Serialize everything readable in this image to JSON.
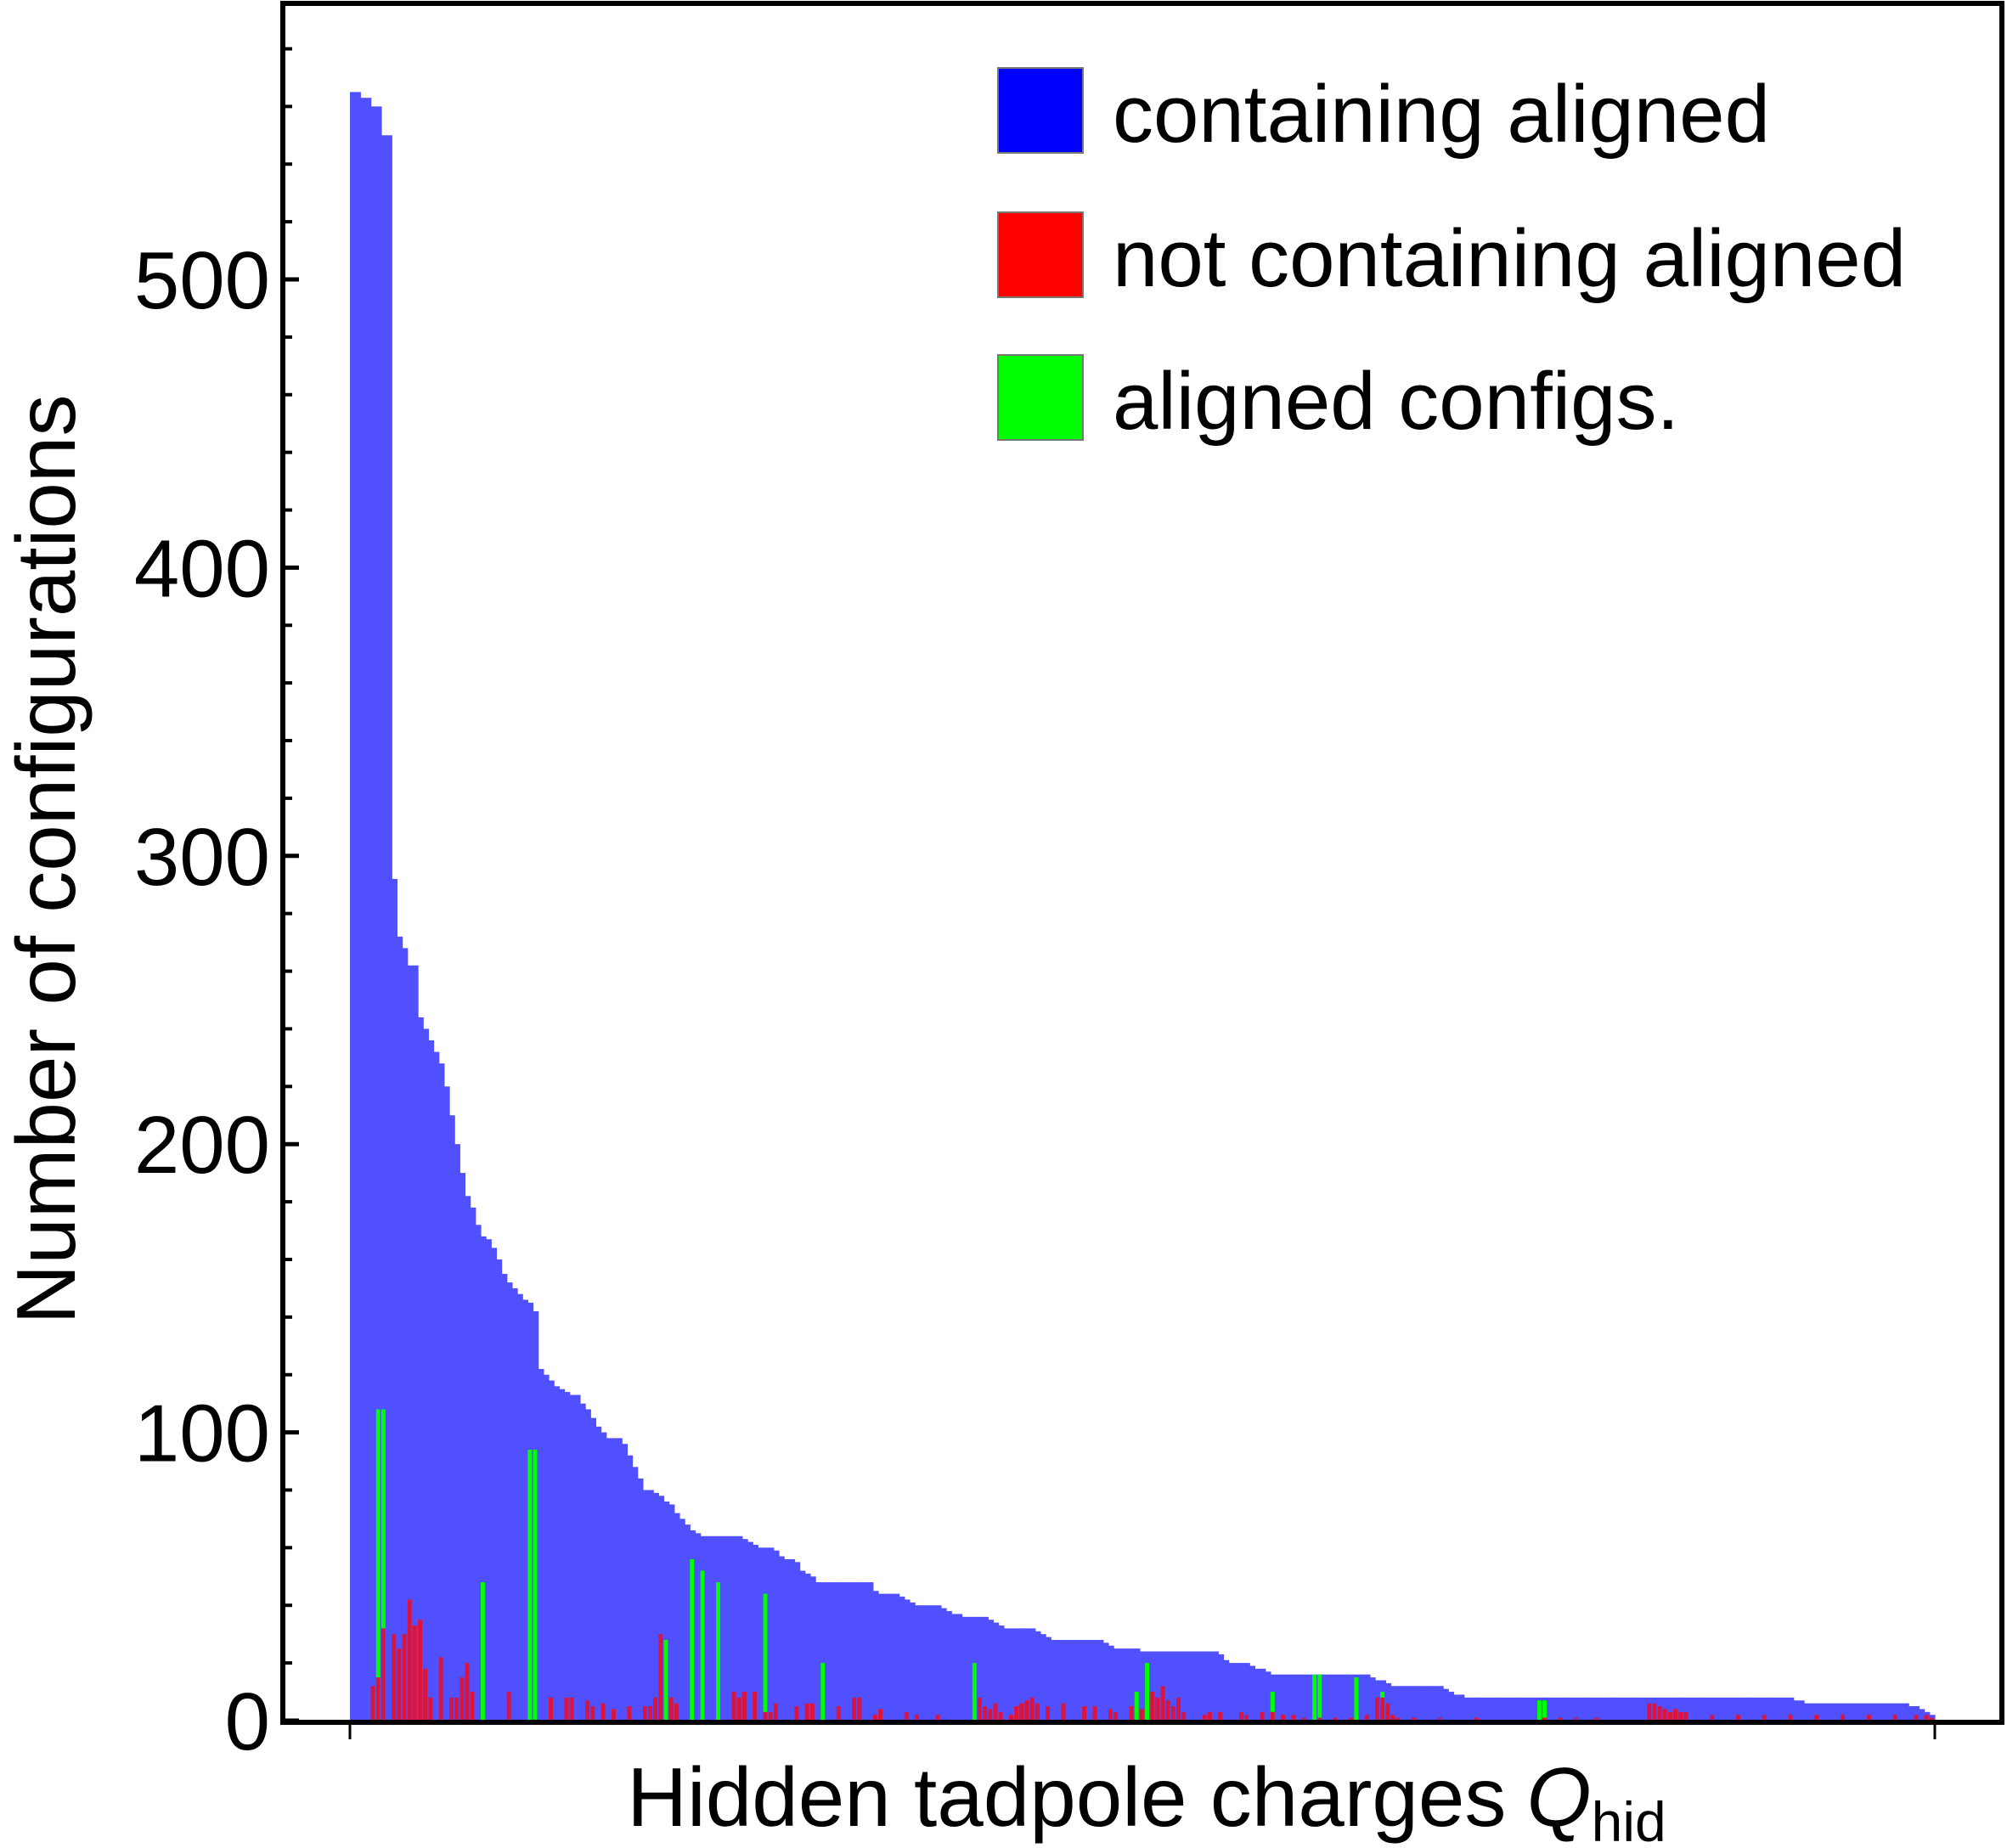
{
  "chart_data": {
    "type": "bar",
    "xlabel": "Hidden tadpole charges",
    "xlabel_symbol": "Q",
    "xlabel_subscript": "hid",
    "ylabel": "Number of configurations",
    "ylim": [
      0,
      590
    ],
    "yticks": [
      "0",
      "100",
      "200",
      "300",
      "400",
      "500"
    ],
    "ytick_values": [
      0,
      100,
      200,
      300,
      400,
      500
    ],
    "grid": false,
    "legend_position": "top-right",
    "colors": {
      "containing": "#5050ff",
      "not_containing": "#dc143c",
      "aligned": "#00ff00",
      "legend_containing": "#0000ff",
      "legend_not_containing": "#ff0000",
      "legend_aligned": "#00ff00"
    },
    "legend": [
      {
        "label": "containing aligned",
        "color": "#0000ff"
      },
      {
        "label": "not containing aligned",
        "color": "#ff0000"
      },
      {
        "label": "aligned configs.",
        "color": "#00ff00"
      }
    ],
    "series": [
      {
        "name": "containing aligned",
        "values": [
          565,
          565,
          563,
          563,
          560,
          560,
          550,
          550,
          292,
          272,
          268,
          262,
          262,
          244,
          240,
          236,
          232,
          228,
          220,
          210,
          200,
          190,
          182,
          178,
          172,
          168,
          167,
          164,
          160,
          155,
          152,
          150,
          148,
          146,
          145,
          142,
          122,
          120,
          118,
          116,
          115,
          114,
          113,
          113,
          110,
          108,
          105,
          102,
          100,
          98,
          98,
          98,
          96,
          92,
          88,
          84,
          80,
          80,
          79,
          78,
          76,
          75,
          72,
          70,
          68,
          66,
          65,
          64,
          64,
          64,
          64,
          64,
          64,
          64,
          64,
          63,
          62,
          61,
          60,
          60,
          60,
          59,
          57,
          56,
          56,
          55,
          52,
          51,
          50,
          48,
          48,
          48,
          48,
          48,
          48,
          48,
          48,
          48,
          48,
          48,
          45,
          44,
          44,
          44,
          44,
          43,
          42,
          41,
          40,
          40,
          40,
          40,
          40,
          39,
          38,
          37,
          37,
          36,
          36,
          36,
          36,
          36,
          35,
          34,
          33,
          32,
          32,
          32,
          32,
          32,
          32,
          31,
          30,
          29,
          28,
          28,
          28,
          28,
          28,
          28,
          28,
          28,
          28,
          28,
          27,
          26,
          25,
          25,
          25,
          25,
          25,
          24,
          24,
          24,
          24,
          24,
          24,
          24,
          24,
          24,
          24,
          24,
          24,
          24,
          24,
          24,
          23,
          21,
          20,
          20,
          20,
          20,
          19,
          18,
          18,
          17,
          16,
          16,
          16,
          16,
          16,
          16,
          16,
          16,
          16,
          16,
          16,
          16,
          16,
          16,
          16,
          16,
          16,
          16,
          16,
          15,
          14,
          14,
          13,
          12,
          12,
          12,
          12,
          12,
          12,
          12,
          12,
          12,
          12,
          11,
          10,
          9,
          9,
          8,
          8,
          8,
          8,
          8,
          8,
          8,
          8,
          8,
          8,
          8,
          8,
          8,
          8,
          8,
          8,
          8,
          8,
          8,
          8,
          8,
          8,
          8,
          8,
          8,
          8,
          8,
          8,
          8,
          8,
          8,
          8,
          8,
          8,
          8,
          8,
          8,
          8,
          8,
          8,
          8,
          8,
          8,
          8,
          8,
          8,
          8,
          8,
          8,
          8,
          8,
          8,
          8,
          8,
          8,
          8,
          8,
          8,
          8,
          8,
          8,
          8,
          8,
          7,
          7,
          6,
          6,
          6,
          6,
          6,
          6,
          6,
          6,
          6,
          6,
          6,
          6,
          6,
          6,
          6,
          6,
          6,
          6,
          6,
          6,
          5,
          5,
          4,
          3,
          2
        ]
      },
      {
        "name": "not containing aligned",
        "sparse": [
          [
            4,
            12
          ],
          [
            5,
            15
          ],
          [
            6,
            32
          ],
          [
            8,
            30
          ],
          [
            9,
            25
          ],
          [
            10,
            30
          ],
          [
            11,
            42
          ],
          [
            12,
            33
          ],
          [
            13,
            35
          ],
          [
            14,
            18
          ],
          [
            15,
            8
          ],
          [
            17,
            22
          ],
          [
            19,
            8
          ],
          [
            20,
            8
          ],
          [
            21,
            15
          ],
          [
            22,
            20
          ],
          [
            23,
            10
          ],
          [
            30,
            10
          ],
          [
            38,
            8
          ],
          [
            41,
            8
          ],
          [
            42,
            8
          ],
          [
            45,
            7
          ],
          [
            46,
            5
          ],
          [
            48,
            6
          ],
          [
            50,
            4
          ],
          [
            53,
            5
          ],
          [
            56,
            5
          ],
          [
            57,
            5
          ],
          [
            58,
            8
          ],
          [
            59,
            30
          ],
          [
            61,
            8
          ],
          [
            62,
            6
          ],
          [
            73,
            10
          ],
          [
            74,
            8
          ],
          [
            75,
            10
          ],
          [
            77,
            10
          ],
          [
            79,
            3
          ],
          [
            80,
            3
          ],
          [
            81,
            6
          ],
          [
            85,
            5
          ],
          [
            87,
            6
          ],
          [
            88,
            6
          ],
          [
            93,
            5
          ],
          [
            96,
            8
          ],
          [
            97,
            8
          ],
          [
            100,
            2
          ],
          [
            101,
            4
          ],
          [
            106,
            3
          ],
          [
            108,
            2
          ],
          [
            112,
            2
          ],
          [
            120,
            8
          ],
          [
            121,
            5
          ],
          [
            122,
            4
          ],
          [
            123,
            6
          ],
          [
            124,
            3
          ],
          [
            126,
            2
          ],
          [
            127,
            5
          ],
          [
            128,
            6
          ],
          [
            129,
            7
          ],
          [
            130,
            8
          ],
          [
            131,
            6
          ],
          [
            133,
            5
          ],
          [
            136,
            6
          ],
          [
            140,
            5
          ],
          [
            142,
            5
          ],
          [
            145,
            4
          ],
          [
            146,
            3
          ],
          [
            149,
            5
          ],
          [
            151,
            4
          ],
          [
            153,
            10
          ],
          [
            154,
            8
          ],
          [
            155,
            12
          ],
          [
            156,
            7
          ],
          [
            157,
            5
          ],
          [
            158,
            8
          ],
          [
            159,
            3
          ],
          [
            163,
            2
          ],
          [
            164,
            3
          ],
          [
            166,
            3
          ],
          [
            170,
            3
          ],
          [
            171,
            2
          ],
          [
            174,
            3
          ],
          [
            176,
            3
          ],
          [
            178,
            2
          ],
          [
            180,
            2
          ],
          [
            182,
            1
          ],
          [
            185,
            1
          ],
          [
            188,
            1
          ],
          [
            191,
            1
          ],
          [
            194,
            2
          ],
          [
            196,
            8
          ],
          [
            197,
            8
          ],
          [
            198,
            6
          ],
          [
            199,
            2
          ],
          [
            200,
            1
          ],
          [
            203,
            1
          ],
          [
            208,
            1
          ],
          [
            215,
            1
          ],
          [
            228,
            1
          ],
          [
            231,
            1
          ],
          [
            234,
            1
          ],
          [
            238,
            1
          ],
          [
            248,
            6
          ],
          [
            249,
            6
          ],
          [
            250,
            5
          ],
          [
            251,
            4
          ],
          [
            252,
            3
          ],
          [
            253,
            4
          ],
          [
            254,
            3
          ],
          [
            255,
            3
          ],
          [
            260,
            2
          ],
          [
            265,
            2
          ],
          [
            270,
            2
          ],
          [
            275,
            2
          ],
          [
            280,
            2
          ],
          [
            285,
            2
          ],
          [
            290,
            2
          ],
          [
            295,
            2
          ],
          [
            299,
            2
          ],
          [
            301,
            2
          ],
          [
            302,
            1
          ]
        ]
      },
      {
        "name": "aligned configs.",
        "sparse": [
          [
            5,
            108
          ],
          [
            6,
            108
          ],
          [
            25,
            48
          ],
          [
            34,
            94
          ],
          [
            35,
            94
          ],
          [
            60,
            28
          ],
          [
            65,
            56
          ],
          [
            67,
            52
          ],
          [
            70,
            48
          ],
          [
            79,
            44
          ],
          [
            90,
            20
          ],
          [
            119,
            20
          ],
          [
            150,
            10
          ],
          [
            152,
            20
          ],
          [
            176,
            10
          ],
          [
            184,
            16
          ],
          [
            185,
            16
          ],
          [
            192,
            15
          ],
          [
            197,
            10
          ],
          [
            227,
            7
          ],
          [
            228,
            7
          ]
        ]
      }
    ]
  }
}
